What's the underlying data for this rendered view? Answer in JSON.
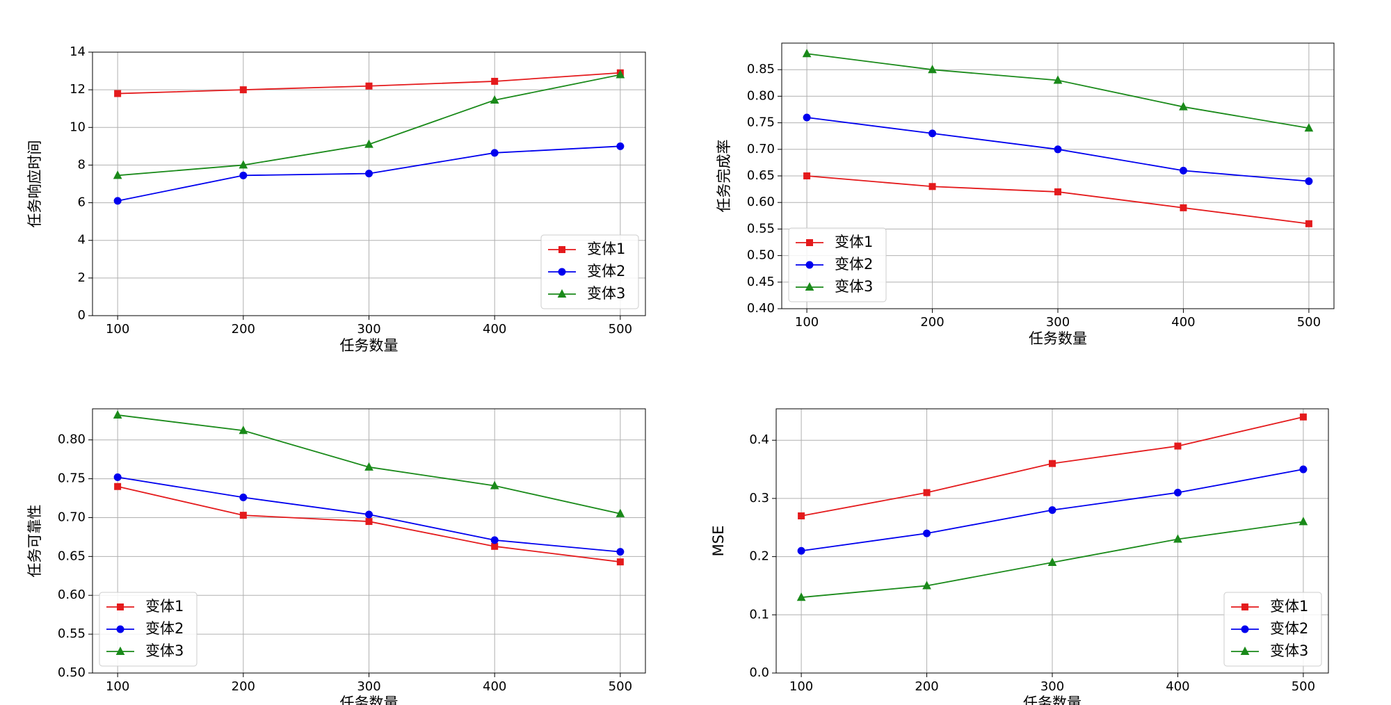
{
  "chart_data": [
    {
      "type": "line",
      "xlabel": "任务数量",
      "ylabel": "任务响应时间",
      "x": [
        100,
        200,
        300,
        400,
        500
      ],
      "xlim": [
        80,
        520
      ],
      "xticks": [
        100,
        200,
        300,
        400,
        500
      ],
      "ylim": [
        0,
        14
      ],
      "yticks": [
        0,
        2,
        4,
        6,
        8,
        10,
        12,
        14
      ],
      "grid": true,
      "legend": "lower right",
      "series": [
        {
          "name": "变体1",
          "color": "#e41a1c",
          "marker": "square",
          "values": [
            11.8,
            12.0,
            12.2,
            12.45,
            12.9
          ]
        },
        {
          "name": "变体2",
          "color": "#0000ee",
          "marker": "circle",
          "values": [
            6.1,
            7.45,
            7.55,
            8.65,
            9.0
          ]
        },
        {
          "name": "变体3",
          "color": "#1a8a1a",
          "marker": "triangle",
          "values": [
            7.45,
            8.0,
            9.1,
            11.45,
            12.8
          ]
        }
      ]
    },
    {
      "type": "line",
      "xlabel": "任务数量",
      "ylabel": "任务完成率",
      "x": [
        100,
        200,
        300,
        400,
        500
      ],
      "xlim": [
        80,
        520
      ],
      "xticks": [
        100,
        200,
        300,
        400,
        500
      ],
      "ylim": [
        0.4,
        0.9
      ],
      "yticks": [
        {
          "value": 0.4,
          "label": "0.40"
        },
        0.45,
        {
          "value": 0.5,
          "label": "0.50"
        },
        0.55,
        {
          "value": 0.6,
          "label": "0.60"
        },
        0.65,
        {
          "value": 0.7,
          "label": "0.70"
        },
        0.75,
        {
          "value": 0.8,
          "label": "0.80"
        },
        0.85
      ],
      "grid": true,
      "legend": "lower left",
      "series": [
        {
          "name": "变体1",
          "color": "#e41a1c",
          "marker": "square",
          "values": [
            0.65,
            0.63,
            0.62,
            0.59,
            0.56
          ]
        },
        {
          "name": "变体2",
          "color": "#0000ee",
          "marker": "circle",
          "values": [
            0.76,
            0.73,
            0.7,
            0.66,
            0.64
          ]
        },
        {
          "name": "变体3",
          "color": "#1a8a1a",
          "marker": "triangle",
          "values": [
            0.88,
            0.85,
            0.83,
            0.78,
            0.74
          ]
        }
      ]
    },
    {
      "type": "line",
      "xlabel": "任务数量",
      "ylabel": "任务可靠性",
      "x": [
        100,
        200,
        300,
        400,
        500
      ],
      "xlim": [
        80,
        520
      ],
      "xticks": [
        100,
        200,
        300,
        400,
        500
      ],
      "ylim": [
        0.5,
        0.84
      ],
      "yticks": [
        {
          "value": 0.5,
          "label": "0.50"
        },
        0.55,
        {
          "value": 0.6,
          "label": "0.60"
        },
        0.65,
        {
          "value": 0.7,
          "label": "0.70"
        },
        0.75,
        {
          "value": 0.8,
          "label": "0.80"
        }
      ],
      "grid": true,
      "legend": "lower left",
      "series": [
        {
          "name": "变体1",
          "color": "#e41a1c",
          "marker": "square",
          "values": [
            0.74,
            0.703,
            0.695,
            0.663,
            0.643
          ]
        },
        {
          "name": "变体2",
          "color": "#0000ee",
          "marker": "circle",
          "values": [
            0.752,
            0.726,
            0.704,
            0.671,
            0.656
          ]
        },
        {
          "name": "变体3",
          "color": "#1a8a1a",
          "marker": "triangle",
          "values": [
            0.832,
            0.812,
            0.765,
            0.741,
            0.705
          ]
        }
      ]
    },
    {
      "type": "line",
      "xlabel": "任务数量",
      "ylabel": "MSE",
      "x": [
        100,
        200,
        300,
        400,
        500
      ],
      "xlim": [
        80,
        520
      ],
      "xticks": [
        100,
        200,
        300,
        400,
        500
      ],
      "ylim": [
        0,
        0.454
      ],
      "yticks": [
        {
          "value": 0,
          "label": "0.0"
        },
        0.1,
        0.2,
        0.3,
        0.4
      ],
      "grid": true,
      "legend": "lower right",
      "series": [
        {
          "name": "变体1",
          "color": "#e41a1c",
          "marker": "square",
          "values": [
            0.27,
            0.31,
            0.36,
            0.39,
            0.44
          ]
        },
        {
          "name": "变体2",
          "color": "#0000ee",
          "marker": "circle",
          "values": [
            0.21,
            0.24,
            0.28,
            0.31,
            0.35
          ]
        },
        {
          "name": "变体3",
          "color": "#1a8a1a",
          "marker": "triangle",
          "values": [
            0.13,
            0.15,
            0.19,
            0.23,
            0.26
          ]
        }
      ]
    }
  ]
}
